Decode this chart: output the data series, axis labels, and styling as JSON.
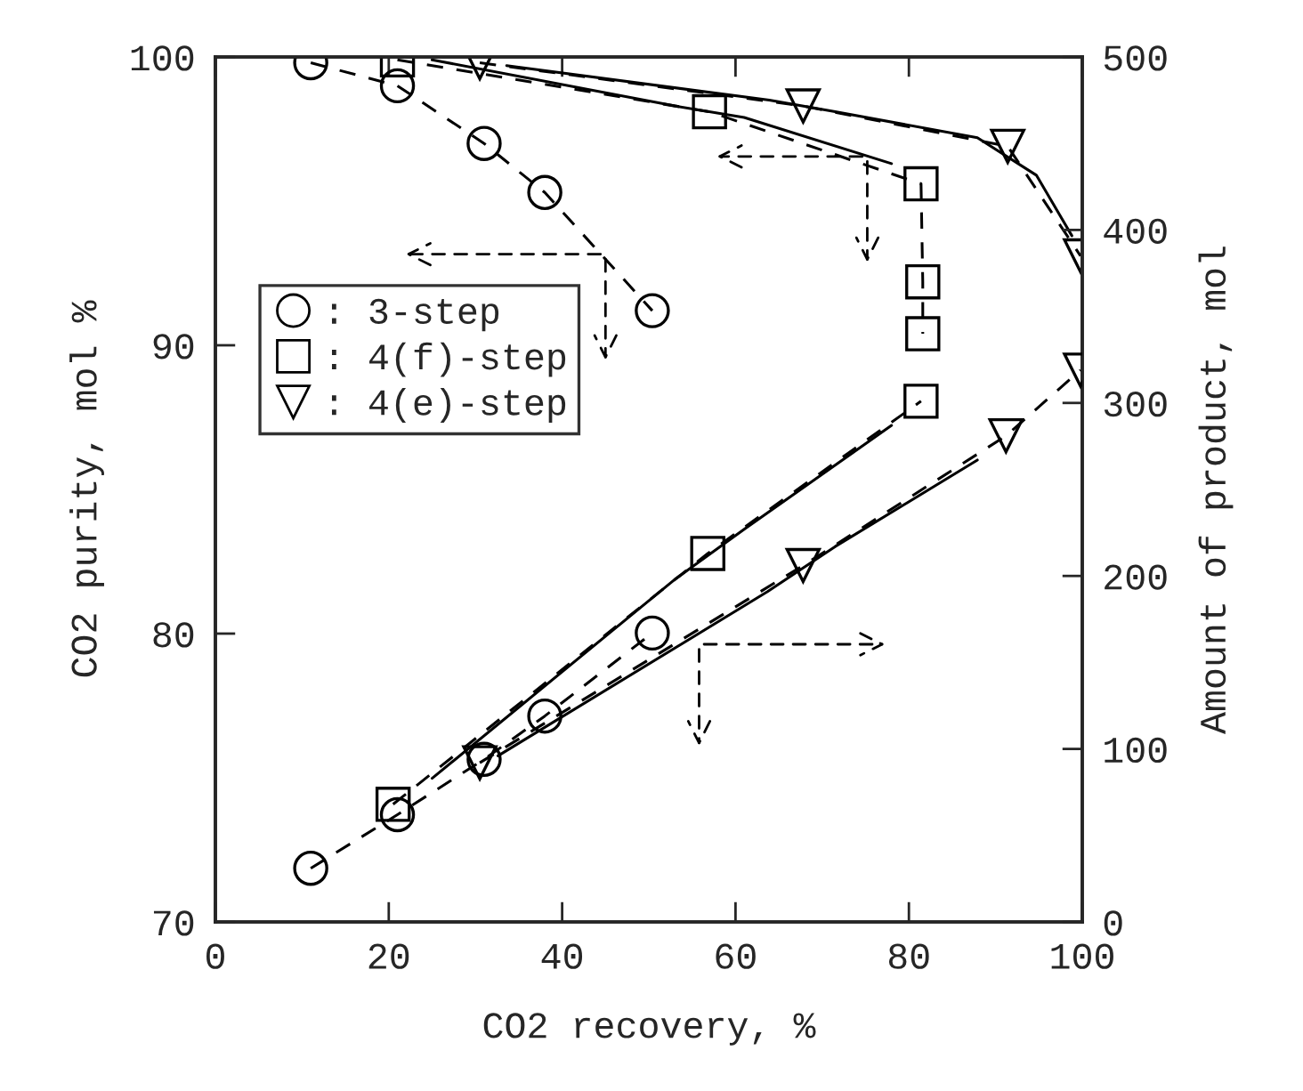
{
  "chart_data": {
    "type": "line",
    "xlabel": "CO2 recovery, %",
    "ylabel": "CO2 purity, mol %",
    "y2label": "Amount of product, mol",
    "xlim": [
      0,
      100
    ],
    "xticks": [
      0,
      20,
      40,
      60,
      80,
      100
    ],
    "ylim": [
      70,
      100
    ],
    "yticks": [
      70,
      80,
      90,
      100
    ],
    "y2lim": [
      0,
      500
    ],
    "y2ticks": [
      0,
      100,
      200,
      300,
      400,
      500
    ],
    "grid": false,
    "legend": "left",
    "series": [
      {
        "name": ": 3-step",
        "color": "#000000",
        "marker": "circle",
        "line_style": "dashed",
        "x": [
          11,
          21,
          31,
          38,
          50.4
        ],
        "values": [
          99.8,
          99.0,
          97.0,
          95.3,
          91.2
        ]
      },
      {
        "color": "#000000",
        "marker": "circle",
        "line_style": "dashed",
        "axis": "y2",
        "x": [
          11,
          21,
          31,
          38,
          50.4
        ],
        "values": [
          31,
          62,
          94,
          119,
          167
        ]
      },
      {
        "name": ": 4(f)-step",
        "color": "#000000",
        "marker": "square",
        "line_style": "dashed",
        "x": [
          21,
          57,
          81.4,
          81.6,
          81.6
        ],
        "values": [
          99.9,
          98.1,
          95.6,
          92.2,
          90.4
        ]
      },
      {
        "color": "#000000",
        "marker": "square",
        "line_style": "dashed",
        "axis": "y2",
        "x": [
          20.5,
          56.8,
          81.4
        ],
        "values": [
          68,
          213,
          301
        ]
      },
      {
        "name": ": 4(e)-step",
        "color": "#000000",
        "marker": "triangle",
        "line_style": "dashed",
        "x": [
          30.5,
          67.8,
          91.4,
          99.8
        ],
        "values": [
          99.8,
          98.3,
          96.9,
          93.1
        ]
      },
      {
        "color": "#000000",
        "marker": "triangle",
        "line_style": "dashed",
        "axis": "y2",
        "x": [
          30.5,
          67.8,
          91.2,
          99.8
        ],
        "values": [
          92,
          206,
          281,
          319
        ]
      },
      {
        "color": "#000000",
        "marker": "none",
        "line_style": "solid",
        "x": [
          25,
          53,
          61,
          78
        ],
        "values": [
          99.9,
          98.3,
          97.9,
          96.3
        ]
      },
      {
        "color": "#000000",
        "marker": "none",
        "line_style": "solid",
        "x": [
          33.6,
          63.9,
          71.5,
          87.9,
          94.7,
          98.8
        ],
        "values": [
          99.7,
          98.5,
          98.1,
          97.2,
          95.9,
          93.8
        ]
      },
      {
        "color": "#000000",
        "marker": "none",
        "line_style": "solid",
        "axis": "y2",
        "x": [
          25,
          53,
          61,
          78
        ],
        "values": [
          83,
          198,
          227,
          287
        ]
      },
      {
        "color": "#000000",
        "marker": "none",
        "line_style": "solid",
        "axis": "y2",
        "x": [
          32.6,
          63.7,
          71.5,
          87.9
        ],
        "values": [
          96,
          191,
          217,
          267
        ]
      }
    ]
  }
}
